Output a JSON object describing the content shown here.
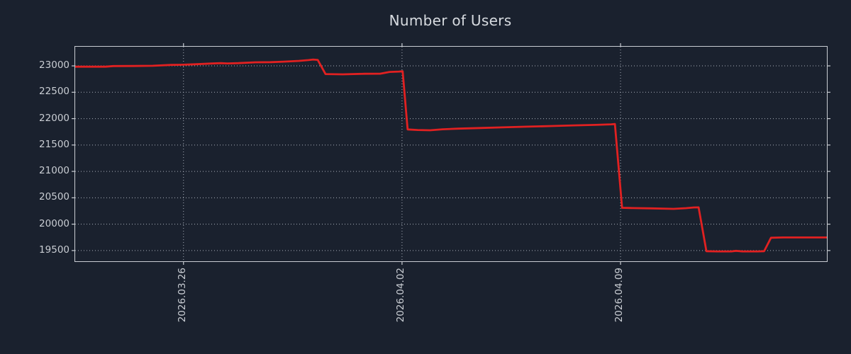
{
  "figure": {
    "title": "Number of Users",
    "colors": {
      "background": "#1a212e",
      "line": "#e12121",
      "axis_border": "#c9cdd3",
      "grid": "#a9b0ba",
      "title_text": "#d7dbe0",
      "tick_text": "#c9cdd3"
    }
  },
  "chart_data": {
    "type": "line",
    "title": "Number of Users",
    "xlabel": "",
    "ylabel": "",
    "legend": "none",
    "grid": "dotted gridlines on both axes, ticks out on all four sides",
    "x_unit": "days relative to 2026.03.26",
    "xlim": [
      -3.47,
      20.61
    ],
    "ylim": [
      19297,
      23363
    ],
    "x_ticks": [
      {
        "pos": 0,
        "label": "2026.03.26"
      },
      {
        "pos": 7,
        "label": "2026.04.02"
      },
      {
        "pos": 14,
        "label": "2026.04.09"
      }
    ],
    "y_ticks": [
      {
        "pos": 19500,
        "label": "19500"
      },
      {
        "pos": 20000,
        "label": "20000"
      },
      {
        "pos": 20500,
        "label": "20500"
      },
      {
        "pos": 21000,
        "label": "21000"
      },
      {
        "pos": 21500,
        "label": "21500"
      },
      {
        "pos": 22000,
        "label": "22000"
      },
      {
        "pos": 22500,
        "label": "22500"
      },
      {
        "pos": 23000,
        "label": "23000"
      }
    ],
    "series": [
      {
        "name": "users",
        "color": "#e12121",
        "points": [
          [
            -3.47,
            22985
          ],
          [
            -2.5,
            22985
          ],
          [
            -2.25,
            22996
          ],
          [
            -1.6,
            22998
          ],
          [
            -0.98,
            23002
          ],
          [
            -0.4,
            23018
          ],
          [
            0.0,
            23022
          ],
          [
            0.35,
            23030
          ],
          [
            0.9,
            23045
          ],
          [
            1.2,
            23052
          ],
          [
            1.4,
            23046
          ],
          [
            1.75,
            23052
          ],
          [
            2.3,
            23068
          ],
          [
            2.8,
            23070
          ],
          [
            3.2,
            23080
          ],
          [
            3.7,
            23095
          ],
          [
            4.0,
            23110
          ],
          [
            4.15,
            23120
          ],
          [
            4.3,
            23113
          ],
          [
            4.55,
            22845
          ],
          [
            5.1,
            22840
          ],
          [
            5.8,
            22850
          ],
          [
            6.3,
            22852
          ],
          [
            6.6,
            22885
          ],
          [
            6.9,
            22892
          ],
          [
            7.02,
            22897
          ],
          [
            7.18,
            21795
          ],
          [
            7.5,
            21785
          ],
          [
            7.9,
            21780
          ],
          [
            8.3,
            21798
          ],
          [
            8.8,
            21810
          ],
          [
            9.5,
            21822
          ],
          [
            10.2,
            21835
          ],
          [
            11.0,
            21848
          ],
          [
            11.8,
            21860
          ],
          [
            12.5,
            21872
          ],
          [
            13.2,
            21882
          ],
          [
            13.7,
            21892
          ],
          [
            13.82,
            21897
          ],
          [
            14.05,
            20310
          ],
          [
            14.4,
            20305
          ],
          [
            15.0,
            20300
          ],
          [
            15.7,
            20290
          ],
          [
            16.1,
            20303
          ],
          [
            16.35,
            20317
          ],
          [
            16.5,
            20318
          ],
          [
            16.75,
            19487
          ],
          [
            17.1,
            19483
          ],
          [
            17.55,
            19483
          ],
          [
            17.7,
            19494
          ],
          [
            17.9,
            19483
          ],
          [
            18.4,
            19484
          ],
          [
            18.6,
            19488
          ],
          [
            18.82,
            19743
          ],
          [
            19.2,
            19748
          ],
          [
            20.0,
            19748
          ],
          [
            20.61,
            19748
          ]
        ]
      }
    ]
  }
}
